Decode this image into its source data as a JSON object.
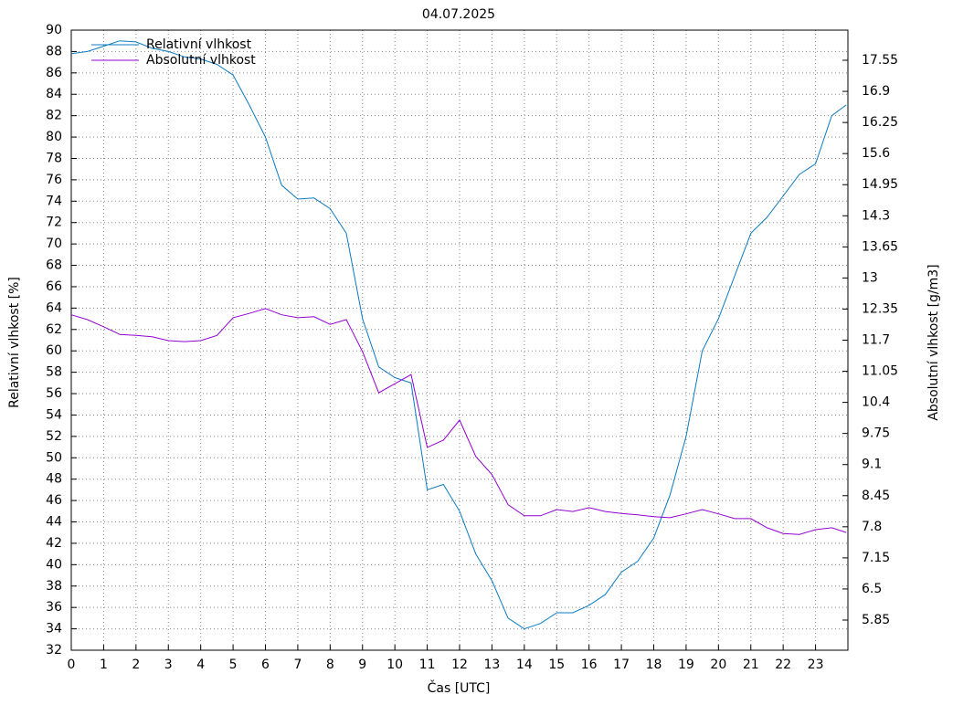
{
  "chart_data": {
    "type": "line",
    "title": "04.07.2025",
    "x_label": "Čas [UTC]",
    "y_label": "Relativní vlhkost [%]",
    "y2_label": "Absolutní vlhkost [g/m3]",
    "x": [
      0,
      0.5,
      1,
      1.5,
      2,
      2.5,
      3,
      3.5,
      4,
      4.5,
      5,
      5.5,
      6,
      6.5,
      7,
      7.5,
      8,
      8.5,
      9,
      9.5,
      10,
      10.5,
      11,
      11.5,
      12,
      12.5,
      13,
      13.5,
      14,
      14.5,
      15,
      15.5,
      16,
      16.5,
      17,
      17.5,
      18,
      18.5,
      19,
      19.5,
      20,
      20.5,
      21,
      21.5,
      22,
      22.5,
      23,
      23.5,
      23.95
    ],
    "series": [
      {
        "name": "Relativní vlhkost",
        "color": "#0c7bc0",
        "axis": "y",
        "values": [
          87.8,
          88.0,
          88.5,
          89.0,
          88.9,
          88.3,
          88.0,
          87.5,
          87.3,
          86.8,
          85.8,
          83,
          80,
          75.5,
          74.2,
          74.3,
          73.3,
          71,
          63,
          58.5,
          57.5,
          57,
          47,
          47.5,
          45,
          41,
          38.5,
          35,
          34,
          34.5,
          35.5,
          35.5,
          36.2,
          37.2,
          39.3,
          40.3,
          42.5,
          46.5,
          52,
          60,
          63,
          67,
          71,
          72.5,
          74.5,
          76.5,
          77.5,
          82,
          83
        ]
      },
      {
        "name": "Absolutní vlhkost",
        "color": "#9400d3",
        "axis": "y2",
        "values": [
          12.23,
          12.13,
          11.98,
          11.82,
          11.8,
          11.77,
          11.69,
          11.67,
          11.69,
          11.8,
          12.17,
          12.26,
          12.36,
          12.23,
          12.17,
          12.19,
          12.03,
          12.13,
          11.46,
          10.6,
          10.79,
          10.98,
          9.46,
          9.61,
          10.03,
          9.27,
          8.89,
          8.26,
          8.03,
          8.03,
          8.16,
          8.12,
          8.2,
          8.12,
          8.08,
          8.05,
          8.01,
          7.99,
          8.07,
          8.16,
          8.07,
          7.97,
          7.97,
          7.78,
          7.66,
          7.64,
          7.74,
          7.78,
          7.68
        ]
      }
    ],
    "xlim": [
      0,
      24
    ],
    "xticks": [
      0,
      1,
      2,
      3,
      4,
      5,
      6,
      7,
      8,
      9,
      10,
      11,
      12,
      13,
      14,
      15,
      16,
      17,
      18,
      19,
      20,
      21,
      22,
      23
    ],
    "ylim": [
      32,
      90
    ],
    "yticks": [
      32,
      34,
      36,
      38,
      40,
      42,
      44,
      46,
      48,
      50,
      52,
      54,
      56,
      58,
      60,
      62,
      64,
      66,
      68,
      70,
      72,
      74,
      76,
      78,
      80,
      82,
      84,
      86,
      88,
      90
    ],
    "y2lim": [
      5.22,
      18.18
    ],
    "y2ticks": [
      5.85,
      6.5,
      7.15,
      7.8,
      8.45,
      9.1,
      9.75,
      10.4,
      11.05,
      11.7,
      12.35,
      13,
      13.65,
      14.3,
      14.95,
      15.6,
      16.25,
      16.9,
      17.55
    ],
    "grid": true,
    "legend": "top-left"
  }
}
